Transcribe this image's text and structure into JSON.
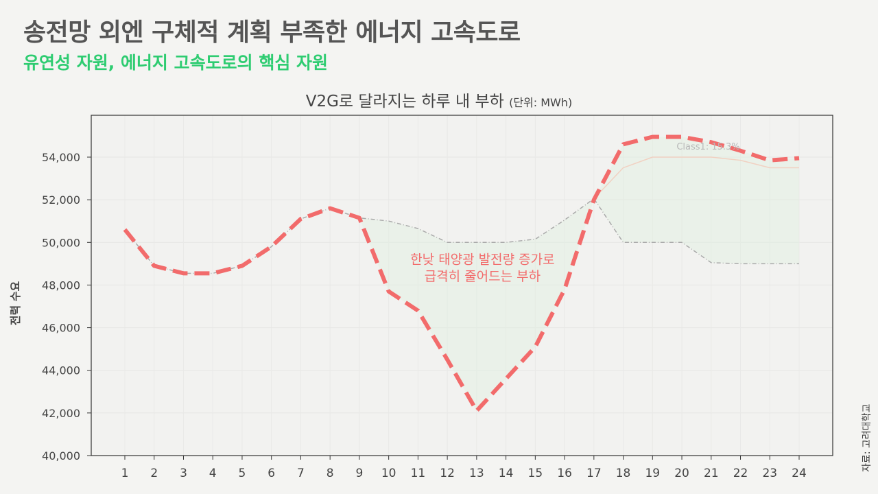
{
  "header": {
    "title": "송전망 외엔 구체적 계획 부족한 에너지 고속도로",
    "subtitle": "유연성 자원, 에너지 고속도로의 핵심 자원"
  },
  "source": "자료: 고려대학교",
  "colors": {
    "title": "#555555",
    "subtitle": "#2ecc71",
    "v2g_line": "#f26b6b",
    "baseline_line": "#aaaaaa",
    "annotation": "#f26b6b",
    "fill": "#dff0df"
  },
  "chart_data": {
    "type": "line",
    "title": "V2G로 달라지는 하루 내 부하",
    "title_unit": "(단위: MWh)",
    "xlabel": "",
    "ylabel": "전력 수요",
    "x": [
      1,
      2,
      3,
      4,
      5,
      6,
      7,
      8,
      9,
      10,
      11,
      12,
      13,
      14,
      15,
      16,
      17,
      18,
      19,
      20,
      21,
      22,
      23,
      24
    ],
    "ylim": [
      40000,
      55800
    ],
    "yticks": [
      40000,
      42000,
      44000,
      46000,
      48000,
      50000,
      52000,
      54000
    ],
    "ytick_labels": [
      "40,000",
      "42,000",
      "44,000",
      "46,000",
      "48,000",
      "50,000",
      "52,000",
      "54,000"
    ],
    "grid": true,
    "series": [
      {
        "style": "dashed-thick",
        "color": "#f26b6b",
        "values": [
          50600,
          48900,
          48550,
          48550,
          48900,
          49800,
          51100,
          51600,
          51150,
          47700,
          46800,
          44500,
          42100,
          43600,
          45100,
          47800,
          52000,
          54600,
          54950,
          54950,
          54700,
          54300,
          53850,
          53950
        ]
      },
      {
        "style": "dashdot-thin",
        "color": "#aaaaaa",
        "values": [
          50600,
          48900,
          48550,
          48550,
          48900,
          49800,
          51100,
          51600,
          51150,
          51000,
          50650,
          50000,
          50000,
          50000,
          50150,
          51050,
          52050,
          50000,
          50000,
          50000,
          49050,
          49000,
          49000,
          49000
        ]
      },
      {
        "style": "faint",
        "color": "#f3c9b8",
        "values": [
          null,
          null,
          null,
          null,
          null,
          null,
          null,
          null,
          null,
          null,
          null,
          null,
          null,
          null,
          null,
          null,
          52050,
          53500,
          54000,
          54000,
          54000,
          53850,
          53500,
          53500
        ]
      }
    ],
    "annotations": [
      {
        "text": "한낮 태양광 발전량 증가로",
        "x": 13.2,
        "y": 49000
      },
      {
        "text": "급격히 줄어드는 부하",
        "x": 13.2,
        "y": 48200
      },
      {
        "text": "Class1: 15.3%",
        "x": 20.9,
        "y": 54350
      }
    ]
  }
}
